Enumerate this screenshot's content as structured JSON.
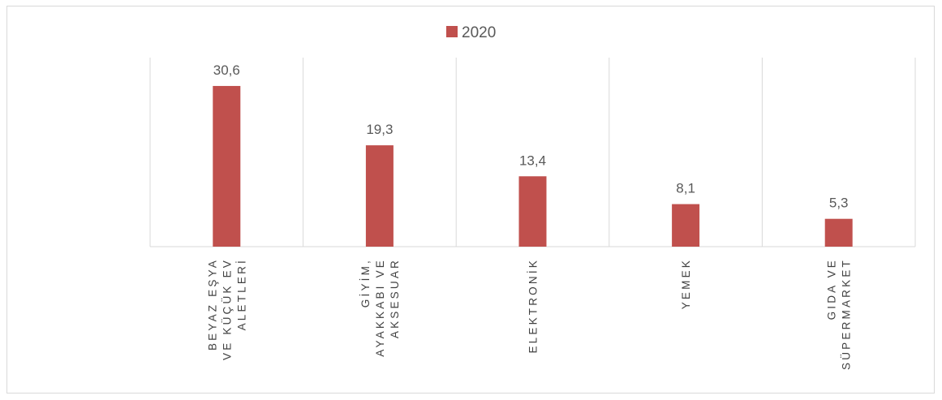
{
  "chart_data": {
    "type": "bar",
    "title": "",
    "xlabel": "",
    "ylabel": "",
    "categories": [
      [
        "BEYAZ EŞYA",
        "VE KÜÇÜK EV",
        "ALETLERİ"
      ],
      [
        "GİYİM,",
        "AYAKKABI VE",
        "AKSESUAR"
      ],
      [
        "ELEKTRONİK"
      ],
      [
        "YEMEK"
      ],
      [
        "GIDA VE",
        "SÜPERMARKET"
      ]
    ],
    "series": [
      {
        "name": "2020",
        "color": "#c0504d",
        "values": [
          30.6,
          19.3,
          13.4,
          8.1,
          5.3
        ],
        "value_labels": [
          "30,6",
          "19,3",
          "13,4",
          "8,1",
          "5,3"
        ]
      }
    ],
    "ylim": [
      0,
      36
    ],
    "grid": "vertical category separators",
    "legend": "top-center",
    "y_axis_visible": false
  }
}
